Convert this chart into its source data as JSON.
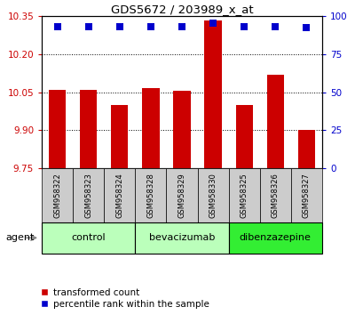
{
  "title": "GDS5672 / 203989_x_at",
  "samples": [
    "GSM958322",
    "GSM958323",
    "GSM958324",
    "GSM958328",
    "GSM958329",
    "GSM958330",
    "GSM958325",
    "GSM958326",
    "GSM958327"
  ],
  "bar_values": [
    10.06,
    10.06,
    10.0,
    10.065,
    10.055,
    10.33,
    10.0,
    10.12,
    9.9
  ],
  "percentile_values": [
    93,
    93,
    93,
    93,
    93,
    95,
    93,
    93,
    92
  ],
  "ylim_left": [
    9.75,
    10.35
  ],
  "ylim_right": [
    0,
    100
  ],
  "yticks_left": [
    9.75,
    9.9,
    10.05,
    10.2,
    10.35
  ],
  "yticks_right": [
    0,
    25,
    50,
    75,
    100
  ],
  "groups": [
    {
      "label": "control",
      "indices": [
        0,
        1,
        2
      ],
      "color": "#bbffbb"
    },
    {
      "label": "bevacizumab",
      "indices": [
        3,
        4,
        5
      ],
      "color": "#bbffbb"
    },
    {
      "label": "dibenzazepine",
      "indices": [
        6,
        7,
        8
      ],
      "color": "#33ee33"
    }
  ],
  "bar_color": "#cc0000",
  "dot_color": "#0000cc",
  "bar_width": 0.55,
  "dot_size": 30,
  "xlabel": "agent",
  "legend_bar_label": "transformed count",
  "legend_dot_label": "percentile rank within the sample",
  "tick_color_left": "#cc0000",
  "tick_color_right": "#0000cc",
  "sample_box_color": "#cccccc",
  "bg_color": "#ffffff"
}
